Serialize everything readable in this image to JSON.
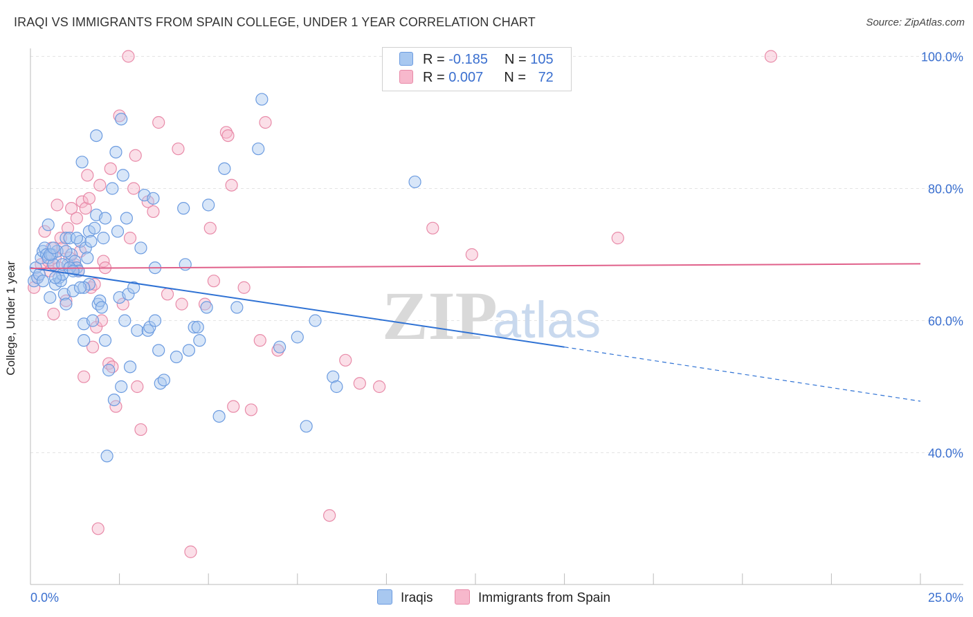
{
  "header": {
    "title": "IRAQI VS IMMIGRANTS FROM SPAIN COLLEGE, UNDER 1 YEAR CORRELATION CHART",
    "source": "Source: ZipAtlas.com"
  },
  "watermark": {
    "zip": "ZIP",
    "atlas": "atlas"
  },
  "legend": {
    "rows": [
      {
        "r_label": "R = ",
        "r_value": "-0.185",
        "n_label": "N = ",
        "n_value": "105"
      },
      {
        "r_label": "R = ",
        "r_value": "0.007",
        "n_label": "N = ",
        "n_value": "72"
      }
    ]
  },
  "colors": {
    "iraqis_fill": "#a8c8f0",
    "iraqis_stroke": "#6b9be0",
    "iraqis_line": "#2f72d4",
    "spain_fill": "#f7b8cc",
    "spain_stroke": "#e88aa8",
    "spain_line": "#e0608a",
    "axis_text": "#3a6fcf"
  },
  "chart_data": {
    "type": "scatter",
    "title": "IRAQI VS IMMIGRANTS FROM SPAIN COLLEGE, UNDER 1 YEAR CORRELATION CHART",
    "xlabel": "",
    "ylabel": "College, Under 1 year",
    "xlim": [
      0,
      25
    ],
    "ylim": [
      20,
      102
    ],
    "x_tick_labels": [
      "0.0%",
      "25.0%"
    ],
    "y_ticks": [
      40,
      60,
      80,
      100
    ],
    "y_tick_labels": [
      "40.0%",
      "60.0%",
      "80.0%",
      "100.0%"
    ],
    "grid": true,
    "legend_position": "top-center",
    "series": [
      {
        "name": "Iraqis",
        "r": -0.185,
        "n": 105,
        "trend": {
          "x0": 0,
          "y0": 68.0,
          "x1": 15,
          "y1": 56.0,
          "dashed_to_x": 25,
          "dashed_y1": 47.8
        },
        "points": [
          [
            0.1,
            66.0
          ],
          [
            0.15,
            68.0
          ],
          [
            0.2,
            66.5
          ],
          [
            0.3,
            69.5
          ],
          [
            0.35,
            70.5
          ],
          [
            0.4,
            71.0
          ],
          [
            0.45,
            70.0
          ],
          [
            0.5,
            74.5
          ],
          [
            0.5,
            69.5
          ],
          [
            0.55,
            63.5
          ],
          [
            0.6,
            70.0
          ],
          [
            0.65,
            68.5
          ],
          [
            0.7,
            65.5
          ],
          [
            0.75,
            70.5
          ],
          [
            0.8,
            66.5
          ],
          [
            0.85,
            66.0
          ],
          [
            0.9,
            67.0
          ],
          [
            0.95,
            64.0
          ],
          [
            1.0,
            62.5
          ],
          [
            1.0,
            72.5
          ],
          [
            1.05,
            68.5
          ],
          [
            1.1,
            72.5
          ],
          [
            1.15,
            70.0
          ],
          [
            1.2,
            64.5
          ],
          [
            1.25,
            69.0
          ],
          [
            1.3,
            68.0
          ],
          [
            1.35,
            67.5
          ],
          [
            1.4,
            72.0
          ],
          [
            1.45,
            84.0
          ],
          [
            1.5,
            59.5
          ],
          [
            1.5,
            57.0
          ],
          [
            1.55,
            71.0
          ],
          [
            1.6,
            69.5
          ],
          [
            1.65,
            65.5
          ],
          [
            1.65,
            73.5
          ],
          [
            1.7,
            72.0
          ],
          [
            1.75,
            60.0
          ],
          [
            1.8,
            74.0
          ],
          [
            1.85,
            76.0
          ],
          [
            1.85,
            88.0
          ],
          [
            1.9,
            62.5
          ],
          [
            1.95,
            63.0
          ],
          [
            2.0,
            62.0
          ],
          [
            2.05,
            72.5
          ],
          [
            2.1,
            57.0
          ],
          [
            2.1,
            75.5
          ],
          [
            2.15,
            39.5
          ],
          [
            2.2,
            52.5
          ],
          [
            2.3,
            80.0
          ],
          [
            2.35,
            48.0
          ],
          [
            2.4,
            85.5
          ],
          [
            2.45,
            73.5
          ],
          [
            2.5,
            63.5
          ],
          [
            2.55,
            50.0
          ],
          [
            2.55,
            90.5
          ],
          [
            2.6,
            82.0
          ],
          [
            2.65,
            60.0
          ],
          [
            2.7,
            75.5
          ],
          [
            2.75,
            64.0
          ],
          [
            2.8,
            53.0
          ],
          [
            2.9,
            65.0
          ],
          [
            3.0,
            58.5
          ],
          [
            3.1,
            71.0
          ],
          [
            3.2,
            79.0
          ],
          [
            3.3,
            58.5
          ],
          [
            3.35,
            59.0
          ],
          [
            3.45,
            78.5
          ],
          [
            3.5,
            68.0
          ],
          [
            3.5,
            60.0
          ],
          [
            3.6,
            55.5
          ],
          [
            3.65,
            50.5
          ],
          [
            3.75,
            51.0
          ],
          [
            4.1,
            54.5
          ],
          [
            4.3,
            77.0
          ],
          [
            4.35,
            68.5
          ],
          [
            4.45,
            55.5
          ],
          [
            4.6,
            59.0
          ],
          [
            4.7,
            59.0
          ],
          [
            4.75,
            57.0
          ],
          [
            4.95,
            62.0
          ],
          [
            5.0,
            77.5
          ],
          [
            5.3,
            45.5
          ],
          [
            5.45,
            83.0
          ],
          [
            5.8,
            62.0
          ],
          [
            6.4,
            86.0
          ],
          [
            6.5,
            93.5
          ],
          [
            7.0,
            56.0
          ],
          [
            7.5,
            57.5
          ],
          [
            7.75,
            44.0
          ],
          [
            8.0,
            60.0
          ],
          [
            8.5,
            51.5
          ],
          [
            8.6,
            50.0
          ],
          [
            10.8,
            81.0
          ],
          [
            0.25,
            67.0
          ],
          [
            0.55,
            70.0
          ],
          [
            0.7,
            66.5
          ],
          [
            0.9,
            68.5
          ],
          [
            1.1,
            68.0
          ],
          [
            1.3,
            72.5
          ],
          [
            1.5,
            65.0
          ],
          [
            0.35,
            66.0
          ],
          [
            0.65,
            71.0
          ],
          [
            1.0,
            70.5
          ],
          [
            1.2,
            67.5
          ],
          [
            1.4,
            65.0
          ]
        ]
      },
      {
        "name": "Immigrants from Spain",
        "r": 0.007,
        "n": 72,
        "trend": {
          "x0": 0,
          "y0": 67.9,
          "x1": 25,
          "y1": 68.6
        },
        "points": [
          [
            0.1,
            65.0
          ],
          [
            0.2,
            66.5
          ],
          [
            0.3,
            68.5
          ],
          [
            0.4,
            73.5
          ],
          [
            0.5,
            69.0
          ],
          [
            0.55,
            67.5
          ],
          [
            0.6,
            71.0
          ],
          [
            0.65,
            61.0
          ],
          [
            0.7,
            69.5
          ],
          [
            0.75,
            77.5
          ],
          [
            0.8,
            68.0
          ],
          [
            0.85,
            72.5
          ],
          [
            0.9,
            71.0
          ],
          [
            1.0,
            63.0
          ],
          [
            1.05,
            74.0
          ],
          [
            1.1,
            69.5
          ],
          [
            1.15,
            77.0
          ],
          [
            1.2,
            68.0
          ],
          [
            1.25,
            68.5
          ],
          [
            1.3,
            75.5
          ],
          [
            1.35,
            67.5
          ],
          [
            1.4,
            70.5
          ],
          [
            1.45,
            78.0
          ],
          [
            1.5,
            51.5
          ],
          [
            1.55,
            77.0
          ],
          [
            1.6,
            82.0
          ],
          [
            1.65,
            78.5
          ],
          [
            1.7,
            65.0
          ],
          [
            1.75,
            56.0
          ],
          [
            1.8,
            65.5
          ],
          [
            1.85,
            59.0
          ],
          [
            1.9,
            28.5
          ],
          [
            1.95,
            80.5
          ],
          [
            2.0,
            60.0
          ],
          [
            2.05,
            69.0
          ],
          [
            2.1,
            68.0
          ],
          [
            2.2,
            53.5
          ],
          [
            2.25,
            83.0
          ],
          [
            2.3,
            53.0
          ],
          [
            2.4,
            47.0
          ],
          [
            2.5,
            91.0
          ],
          [
            2.6,
            62.5
          ],
          [
            2.75,
            100.0
          ],
          [
            2.8,
            72.5
          ],
          [
            2.9,
            80.0
          ],
          [
            2.95,
            85.0
          ],
          [
            3.0,
            50.0
          ],
          [
            3.1,
            43.5
          ],
          [
            3.3,
            78.0
          ],
          [
            3.45,
            76.5
          ],
          [
            3.6,
            90.0
          ],
          [
            3.85,
            64.0
          ],
          [
            4.15,
            86.0
          ],
          [
            4.25,
            62.5
          ],
          [
            4.5,
            25.0
          ],
          [
            4.9,
            62.5
          ],
          [
            5.05,
            74.0
          ],
          [
            5.15,
            66.0
          ],
          [
            5.5,
            88.5
          ],
          [
            5.55,
            88.0
          ],
          [
            5.65,
            80.5
          ],
          [
            5.7,
            47.0
          ],
          [
            6.0,
            65.0
          ],
          [
            6.2,
            46.5
          ],
          [
            6.45,
            57.0
          ],
          [
            6.6,
            90.0
          ],
          [
            6.95,
            55.5
          ],
          [
            8.4,
            30.5
          ],
          [
            8.85,
            54.0
          ],
          [
            9.25,
            50.5
          ],
          [
            9.8,
            50.0
          ],
          [
            11.3,
            74.0
          ]
        ]
      }
    ]
  },
  "extra_spain_points": [
    [
      12.4,
      70.0
    ],
    [
      16.5,
      72.5
    ],
    [
      20.8,
      100.0
    ]
  ],
  "bottom_legend": {
    "iraqis": "Iraqis",
    "spain": "Immigrants from Spain"
  }
}
